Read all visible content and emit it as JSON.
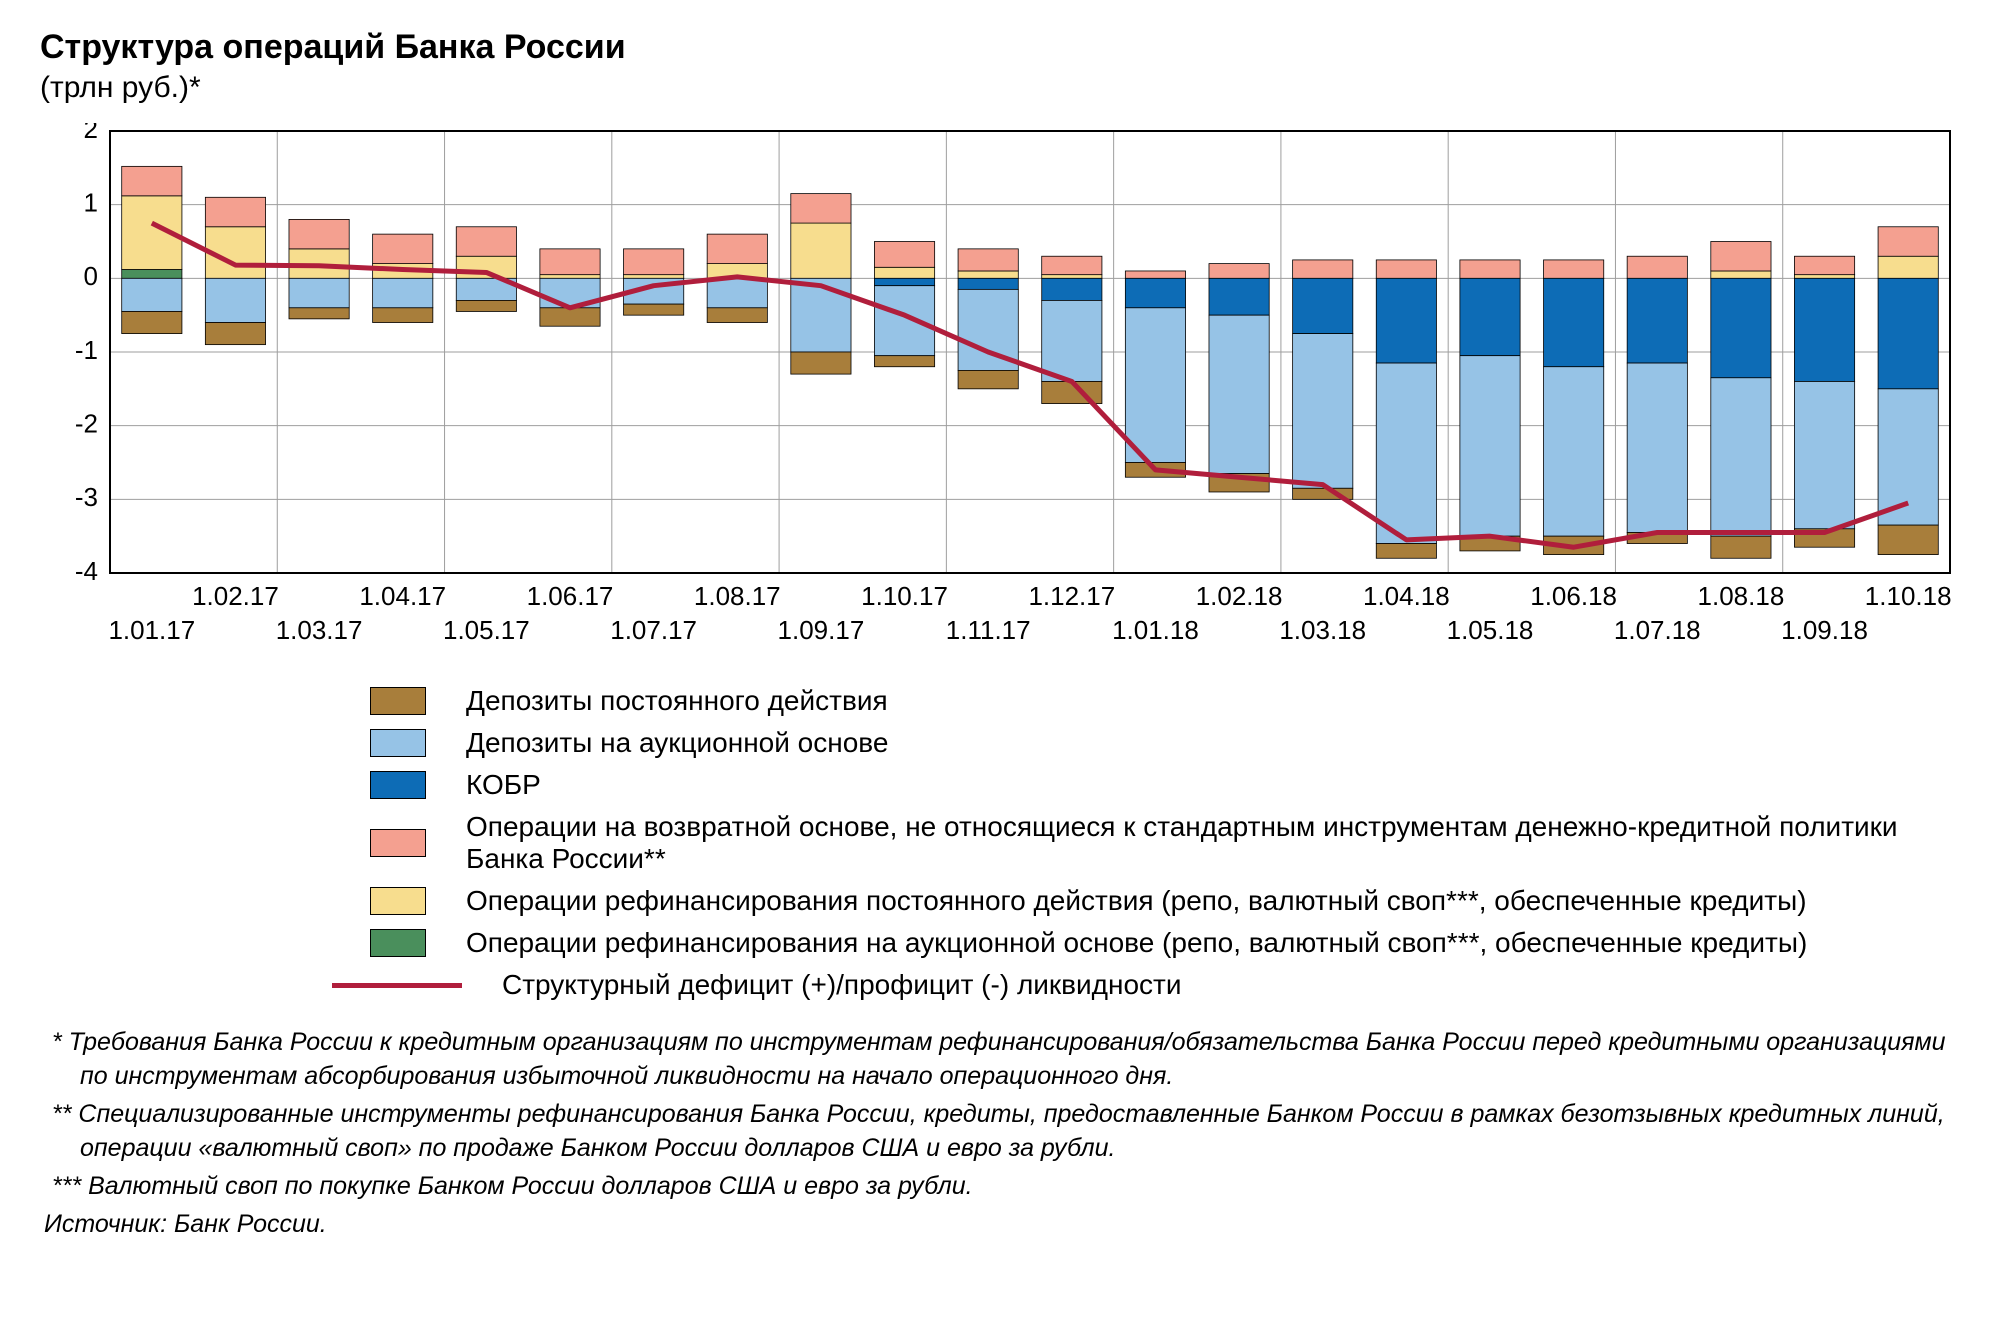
{
  "title": "Структура операций Банка России",
  "subtitle": "(трлн руб.)*",
  "chart": {
    "type": "stacked-bar-with-line",
    "ylim": [
      -4,
      2
    ],
    "ytick_step": 1,
    "yticks": [
      2,
      1,
      0,
      -1,
      -2,
      -3,
      -4
    ],
    "background_color": "#ffffff",
    "grid_color": "#9e9e9e",
    "border_color": "#000000",
    "bar_stroke": "#000000",
    "bar_stroke_width": 0.8,
    "line_color": "#b01e3c",
    "line_width": 5,
    "x_labels_row1": [
      "1.02.17",
      "1.04.17",
      "1.06.17",
      "1.08.17",
      "1.10.17",
      "1.12.17",
      "1.02.18",
      "1.04.18",
      "1.06.18",
      "1.08.18",
      "1.10.18"
    ],
    "x_labels_row2": [
      "1.01.17",
      "1.03.17",
      "1.05.17",
      "1.07.17",
      "1.09.17",
      "1.11.17",
      "1.01.18",
      "1.03.18",
      "1.05.18",
      "1.07.18",
      "1.09.18"
    ],
    "bar_width_ratio": 0.72,
    "n_bars": 22,
    "series": {
      "dep_perm": {
        "label": "Депозиты постоянного действия",
        "color": "#a87e3b"
      },
      "dep_auc": {
        "label": "Депозиты на аукционной основе",
        "color": "#96c3e6"
      },
      "kobr": {
        "label": "КОБР",
        "color": "#0d6cb6"
      },
      "ops_nonstd": {
        "label": "Операции на возвратной основе, не относящиеся к стандартным инструментам денежно-кредитной политики Банка России**",
        "color": "#f4a090"
      },
      "refi_perm": {
        "label": "Операции рефинансирования постоянного действия (репо, валютный своп***, обеспеченные кредиты)",
        "color": "#f7dd8e"
      },
      "refi_auc": {
        "label": "Операции рефинансирования на аукционной основе (репо, валютный своп***, обеспеченные кредиты)",
        "color": "#4a8f5c"
      },
      "line": {
        "label": "Структурный дефицит (+)/профицит (-) ликвидности",
        "color": "#b01e3c"
      }
    },
    "data": [
      {
        "dep_perm": -0.3,
        "dep_auc": -0.45,
        "kobr": 0.0,
        "refi_auc": 0.12,
        "refi_perm": 1.0,
        "ops_nonstd": 0.4,
        "line": 0.75
      },
      {
        "dep_perm": -0.3,
        "dep_auc": -0.6,
        "kobr": 0.0,
        "refi_auc": 0.0,
        "refi_perm": 0.7,
        "ops_nonstd": 0.4,
        "line": 0.18
      },
      {
        "dep_perm": -0.15,
        "dep_auc": -0.4,
        "kobr": 0.0,
        "refi_auc": 0.0,
        "refi_perm": 0.4,
        "ops_nonstd": 0.4,
        "line": 0.17
      },
      {
        "dep_perm": -0.2,
        "dep_auc": -0.4,
        "kobr": 0.0,
        "refi_auc": 0.0,
        "refi_perm": 0.2,
        "ops_nonstd": 0.4,
        "line": 0.12
      },
      {
        "dep_perm": -0.15,
        "dep_auc": -0.3,
        "kobr": 0.0,
        "refi_auc": 0.0,
        "refi_perm": 0.3,
        "ops_nonstd": 0.4,
        "line": 0.08
      },
      {
        "dep_perm": -0.25,
        "dep_auc": -0.4,
        "kobr": 0.0,
        "refi_auc": 0.0,
        "refi_perm": 0.05,
        "ops_nonstd": 0.35,
        "line": -0.4
      },
      {
        "dep_perm": -0.15,
        "dep_auc": -0.35,
        "kobr": 0.0,
        "refi_auc": 0.0,
        "refi_perm": 0.05,
        "ops_nonstd": 0.35,
        "line": -0.1
      },
      {
        "dep_perm": -0.2,
        "dep_auc": -0.4,
        "kobr": 0.0,
        "refi_auc": 0.0,
        "refi_perm": 0.2,
        "ops_nonstd": 0.4,
        "line": 0.02
      },
      {
        "dep_perm": -0.3,
        "dep_auc": -1.0,
        "kobr": 0.0,
        "refi_auc": 0.0,
        "refi_perm": 0.75,
        "ops_nonstd": 0.4,
        "line": -0.1
      },
      {
        "dep_perm": -0.15,
        "dep_auc": -0.95,
        "kobr": -0.1,
        "refi_auc": 0.0,
        "refi_perm": 0.15,
        "ops_nonstd": 0.35,
        "line": -0.5
      },
      {
        "dep_perm": -0.25,
        "dep_auc": -1.1,
        "kobr": -0.15,
        "refi_auc": 0.0,
        "refi_perm": 0.1,
        "ops_nonstd": 0.3,
        "line": -1.0
      },
      {
        "dep_perm": -0.3,
        "dep_auc": -1.1,
        "kobr": -0.3,
        "refi_auc": 0.0,
        "refi_perm": 0.05,
        "ops_nonstd": 0.25,
        "line": -1.4
      },
      {
        "dep_perm": -0.2,
        "dep_auc": -2.1,
        "kobr": -0.4,
        "refi_auc": 0.0,
        "refi_perm": 0.0,
        "ops_nonstd": 0.1,
        "line": -2.6
      },
      {
        "dep_perm": -0.25,
        "dep_auc": -2.15,
        "kobr": -0.5,
        "refi_auc": 0.0,
        "refi_perm": 0.0,
        "ops_nonstd": 0.2,
        "line": -2.7
      },
      {
        "dep_perm": -0.15,
        "dep_auc": -2.1,
        "kobr": -0.75,
        "refi_auc": 0.0,
        "refi_perm": 0.0,
        "ops_nonstd": 0.25,
        "line": -2.8
      },
      {
        "dep_perm": -0.2,
        "dep_auc": -2.45,
        "kobr": -1.15,
        "refi_auc": 0.0,
        "refi_perm": 0.0,
        "ops_nonstd": 0.25,
        "line": -3.55
      },
      {
        "dep_perm": -0.2,
        "dep_auc": -2.45,
        "kobr": -1.05,
        "refi_auc": 0.0,
        "refi_perm": 0.0,
        "ops_nonstd": 0.25,
        "line": -3.5
      },
      {
        "dep_perm": -0.25,
        "dep_auc": -2.3,
        "kobr": -1.2,
        "refi_auc": 0.0,
        "refi_perm": 0.0,
        "ops_nonstd": 0.25,
        "line": -3.65
      },
      {
        "dep_perm": -0.15,
        "dep_auc": -2.3,
        "kobr": -1.15,
        "refi_auc": 0.0,
        "refi_perm": 0.0,
        "ops_nonstd": 0.3,
        "line": -3.45
      },
      {
        "dep_perm": -0.3,
        "dep_auc": -2.15,
        "kobr": -1.35,
        "refi_auc": 0.0,
        "refi_perm": 0.1,
        "ops_nonstd": 0.4,
        "line": -3.45
      },
      {
        "dep_perm": -0.25,
        "dep_auc": -2.0,
        "kobr": -1.4,
        "refi_auc": 0.0,
        "refi_perm": 0.05,
        "ops_nonstd": 0.25,
        "line": -3.45
      },
      {
        "dep_perm": -0.4,
        "dep_auc": -1.85,
        "kobr": -1.5,
        "refi_auc": 0.0,
        "refi_perm": 0.3,
        "ops_nonstd": 0.4,
        "line": -3.05
      }
    ]
  },
  "legend_order": [
    "dep_perm",
    "dep_auc",
    "kobr",
    "ops_nonstd",
    "refi_perm",
    "refi_auc"
  ],
  "footnotes": {
    "f1": "* Требования Банка России к кредитным организациям по инструментам рефинансирования/обязательства Банка России перед кредитными организациями по инструментам абсорбирования избыточной ликвидности на начало операционного дня.",
    "f2": "** Специализированные инструменты рефинансирования Банка России, кредиты, предоставленные Банком России в рамках безотзывных кредитных линий, операции «валютный своп» по продаже Банком России долларов США и евро за рубли.",
    "f3": "*** Валютный своп по покупке Банком России долларов США и евро за рубли."
  },
  "source": "Источник: Банк России."
}
